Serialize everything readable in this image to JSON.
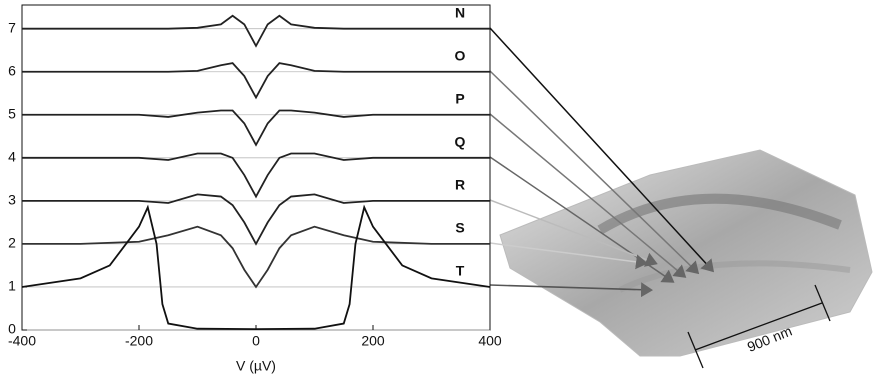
{
  "chart_data": {
    "type": "line",
    "xlabel": "V (µV)",
    "xlim": [
      -400,
      400
    ],
    "ylim": [
      0,
      7.55
    ],
    "xticks": [
      -400,
      -200,
      0,
      200,
      400
    ],
    "yticks": [
      0,
      1,
      2,
      3,
      4,
      5,
      6,
      7
    ],
    "grid": true,
    "series": [
      {
        "name": "N",
        "color": "#222222",
        "x": [
          -400,
          -300,
          -200,
          -150,
          -100,
          -60,
          -40,
          -20,
          0,
          20,
          40,
          60,
          100,
          150,
          200,
          300,
          400
        ],
        "values": [
          7,
          7,
          7,
          7,
          7.02,
          7.1,
          7.3,
          7.1,
          6.6,
          7.1,
          7.3,
          7.1,
          7.02,
          7,
          7,
          7,
          7
        ]
      },
      {
        "name": "O",
        "color": "#222222",
        "x": [
          -400,
          -300,
          -200,
          -150,
          -100,
          -60,
          -40,
          -20,
          0,
          20,
          40,
          60,
          100,
          150,
          200,
          300,
          400
        ],
        "values": [
          6,
          6,
          6,
          6,
          6.02,
          6.15,
          6.2,
          5.9,
          5.4,
          5.9,
          6.2,
          6.15,
          6.02,
          6,
          6,
          6,
          6
        ]
      },
      {
        "name": "P",
        "color": "#222222",
        "x": [
          -400,
          -300,
          -200,
          -150,
          -100,
          -60,
          -40,
          -20,
          0,
          20,
          40,
          60,
          100,
          150,
          200,
          300,
          400
        ],
        "values": [
          5,
          5,
          5,
          4.95,
          5.05,
          5.1,
          5.1,
          4.8,
          4.3,
          4.8,
          5.1,
          5.1,
          5.05,
          4.95,
          5,
          5,
          5
        ]
      },
      {
        "name": "Q",
        "color": "#222222",
        "x": [
          -400,
          -300,
          -200,
          -150,
          -100,
          -60,
          -40,
          -20,
          0,
          20,
          40,
          60,
          100,
          150,
          200,
          300,
          400
        ],
        "values": [
          4,
          4,
          4,
          3.95,
          4.1,
          4.1,
          4,
          3.6,
          3.1,
          3.6,
          4,
          4.1,
          4.1,
          3.95,
          4,
          4,
          4
        ]
      },
      {
        "name": "R",
        "color": "#222222",
        "x": [
          -400,
          -300,
          -200,
          -150,
          -100,
          -60,
          -40,
          -20,
          0,
          20,
          40,
          60,
          100,
          150,
          200,
          300,
          400
        ],
        "values": [
          3,
          3,
          3,
          2.95,
          3.15,
          3.1,
          2.9,
          2.5,
          2,
          2.5,
          2.9,
          3.1,
          3.15,
          2.95,
          3,
          3,
          3
        ]
      },
      {
        "name": "S",
        "color": "#333333",
        "x": [
          -400,
          -300,
          -200,
          -150,
          -100,
          -60,
          -40,
          -20,
          0,
          20,
          40,
          60,
          100,
          150,
          200,
          300,
          400
        ],
        "values": [
          2,
          2,
          2.05,
          2.2,
          2.4,
          2.2,
          1.9,
          1.4,
          1,
          1.4,
          1.9,
          2.2,
          2.4,
          2.2,
          2.05,
          2,
          2
        ]
      },
      {
        "name": "T",
        "color": "#111111",
        "x": [
          -400,
          -300,
          -250,
          -200,
          -185,
          -170,
          -160,
          -150,
          -100,
          0,
          100,
          150,
          160,
          170,
          185,
          200,
          250,
          300,
          400
        ],
        "values": [
          1,
          1.2,
          1.5,
          2.4,
          2.85,
          2,
          0.6,
          0.15,
          0.03,
          0.02,
          0.03,
          0.15,
          0.6,
          2,
          2.85,
          2.4,
          1.5,
          1.2,
          1
        ]
      }
    ]
  },
  "image": {
    "scale_label": "900 nm"
  }
}
